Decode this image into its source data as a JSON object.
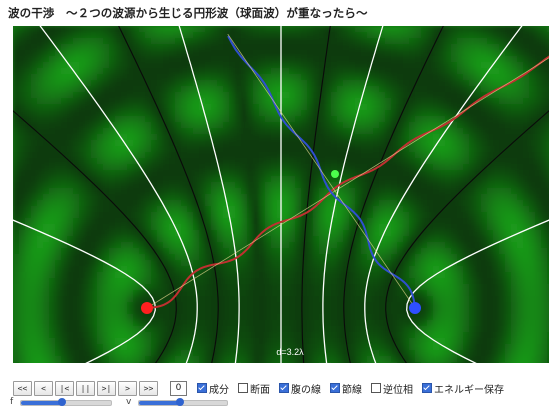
{
  "title": "波の干渉　～２つの波源から生じる円形波（球面波）が重なったら～",
  "simulation": {
    "distance_label": "d=3.2λ",
    "source_left_color": "#ff2020",
    "source_right_color": "#2f4fff",
    "intersection_color": "#4cff4c",
    "wave_line_left_color": "#c03030",
    "wave_line_right_color": "#2f4fcf",
    "antinodal_line_color": "#ffffff",
    "nodal_line_color": "#0a0a0a",
    "wave_colors": [
      "#1a9a1a",
      "#0a3a0a"
    ]
  },
  "controls": {
    "buttons": [
      "<<",
      "<",
      "|<",
      "||",
      ">|",
      ">",
      ">>"
    ],
    "counter": "0",
    "checkboxes": [
      {
        "label": "成分",
        "checked": true
      },
      {
        "label": "断面",
        "checked": false
      },
      {
        "label": "腹の線",
        "checked": true
      },
      {
        "label": "節線",
        "checked": true
      },
      {
        "label": "逆位相",
        "checked": false
      },
      {
        "label": "エネルギー保存",
        "checked": true
      }
    ]
  },
  "sliders": [
    {
      "label": "f",
      "value_fraction": 0.45
    },
    {
      "label": "v",
      "value_fraction": 0.47
    }
  ]
}
